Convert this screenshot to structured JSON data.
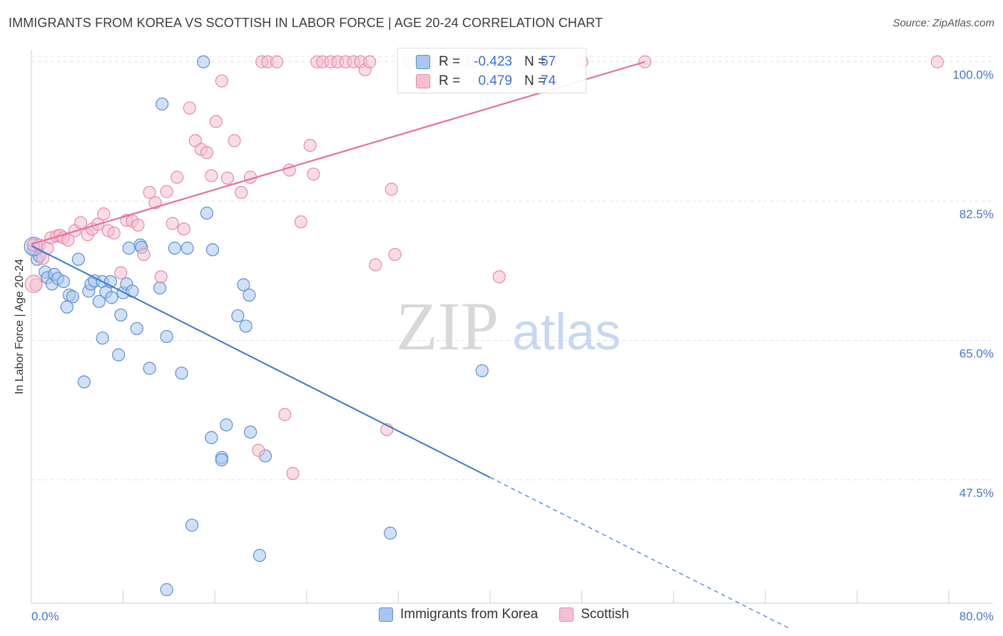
{
  "header": {
    "title": "IMMIGRANTS FROM KOREA VS SCOTTISH IN LABOR FORCE | AGE 20-24 CORRELATION CHART",
    "source": "Source: ZipAtlas.com"
  },
  "watermark": {
    "zip": "ZIP",
    "atlas": "atlas"
  },
  "colors": {
    "korea_fill": "#a9c6ef",
    "korea_stroke": "#5b8fd6",
    "korea_line": "#3a78d4",
    "scottish_fill": "#f6bfd0",
    "scottish_stroke": "#e58aa9",
    "scottish_line": "#e8709a",
    "tick_text": "#4a74c9"
  },
  "stats": {
    "rows": [
      {
        "series": "Immigrants from Korea",
        "r_label": "R =",
        "r_value": "-0.423",
        "n_label": "N =",
        "n_value": "57"
      },
      {
        "series": "Scottish",
        "r_label": "R =",
        "r_value": "0.479",
        "n_label": "N =",
        "n_value": "74"
      }
    ]
  },
  "legend": {
    "korea": "Immigrants from Korea",
    "scottish": "Scottish"
  },
  "chart_data": {
    "type": "scatter",
    "title": "IMMIGRANTS FROM KOREA VS SCOTTISH IN LABOR FORCE | AGE 20-24 CORRELATION CHART",
    "xlabel": "",
    "ylabel": "In Labor Force | Age 20-24",
    "xlim": [
      0,
      80
    ],
    "ylim": [
      32,
      101.5
    ],
    "x_tick_labels": [
      "0.0%",
      "80.0%"
    ],
    "y_ticks": [
      47.5,
      65.0,
      82.5,
      100.0
    ],
    "y_tick_labels": [
      "47.5%",
      "65.0%",
      "82.5%",
      "100.0%"
    ],
    "grid": true,
    "series": [
      {
        "name": "Immigrants from Korea",
        "trend": {
          "x": [
            0,
            40.0
          ],
          "y": [
            76.9,
            47.8
          ],
          "dashed_to": [
            66.0,
            28.9
          ]
        },
        "points": [
          [
            0.2,
            76.5
          ],
          [
            0.5,
            75.2
          ],
          [
            0.7,
            75.6
          ],
          [
            1.2,
            73.6
          ],
          [
            1.4,
            72.9
          ],
          [
            1.8,
            72.1
          ],
          [
            2.0,
            73.3
          ],
          [
            2.3,
            72.8
          ],
          [
            2.8,
            72.4
          ],
          [
            3.1,
            69.2
          ],
          [
            3.3,
            70.7
          ],
          [
            3.6,
            70.5
          ],
          [
            4.1,
            75.2
          ],
          [
            4.6,
            59.8
          ],
          [
            5.0,
            71.2
          ],
          [
            5.2,
            72.1
          ],
          [
            5.5,
            72.5
          ],
          [
            5.9,
            69.9
          ],
          [
            6.2,
            72.4
          ],
          [
            6.2,
            65.3
          ],
          [
            6.5,
            71.1
          ],
          [
            6.9,
            72.4
          ],
          [
            7.0,
            70.4
          ],
          [
            7.6,
            63.2
          ],
          [
            7.8,
            68.2
          ],
          [
            8.0,
            71.0
          ],
          [
            8.3,
            72.1
          ],
          [
            8.5,
            76.6
          ],
          [
            8.8,
            71.2
          ],
          [
            9.2,
            66.5
          ],
          [
            9.5,
            77.0
          ],
          [
            9.6,
            76.7
          ],
          [
            10.3,
            61.5
          ],
          [
            11.2,
            71.6
          ],
          [
            11.4,
            94.7
          ],
          [
            11.8,
            65.5
          ],
          [
            11.8,
            33.7
          ],
          [
            12.5,
            76.6
          ],
          [
            13.1,
            60.9
          ],
          [
            13.6,
            76.6
          ],
          [
            14.0,
            41.8
          ],
          [
            15.0,
            100.0
          ],
          [
            15.3,
            81.0
          ],
          [
            15.7,
            52.8
          ],
          [
            15.8,
            76.4
          ],
          [
            16.6,
            50.3
          ],
          [
            16.6,
            50.0
          ],
          [
            17.0,
            54.4
          ],
          [
            18.0,
            68.1
          ],
          [
            18.5,
            72.0
          ],
          [
            18.7,
            66.8
          ],
          [
            19.0,
            70.7
          ],
          [
            19.1,
            53.5
          ],
          [
            19.9,
            38.0
          ],
          [
            20.4,
            50.5
          ],
          [
            31.3,
            40.8
          ],
          [
            39.3,
            61.2
          ]
        ]
      },
      {
        "name": "Scottish",
        "trend": {
          "x": [
            0,
            53.5
          ],
          "y": [
            77.1,
            100.0
          ]
        },
        "points": [
          [
            0.2,
            77.0
          ],
          [
            0.4,
            72.0
          ],
          [
            0.7,
            77.0
          ],
          [
            1.0,
            75.3
          ],
          [
            1.4,
            76.6
          ],
          [
            1.7,
            77.9
          ],
          [
            2.2,
            78.1
          ],
          [
            2.5,
            78.2
          ],
          [
            2.8,
            77.9
          ],
          [
            3.2,
            77.6
          ],
          [
            3.8,
            78.8
          ],
          [
            4.3,
            79.8
          ],
          [
            4.9,
            78.3
          ],
          [
            5.3,
            79.0
          ],
          [
            5.8,
            79.6
          ],
          [
            6.3,
            80.9
          ],
          [
            6.7,
            78.8
          ],
          [
            7.2,
            78.5
          ],
          [
            7.8,
            73.5
          ],
          [
            8.3,
            80.1
          ],
          [
            8.8,
            80.0
          ],
          [
            9.3,
            79.5
          ],
          [
            9.8,
            75.8
          ],
          [
            10.3,
            83.6
          ],
          [
            10.8,
            82.3
          ],
          [
            11.3,
            73.0
          ],
          [
            11.8,
            83.7
          ],
          [
            12.3,
            79.7
          ],
          [
            12.7,
            85.5
          ],
          [
            13.3,
            79.0
          ],
          [
            13.8,
            94.2
          ],
          [
            14.3,
            90.1
          ],
          [
            14.8,
            89.0
          ],
          [
            15.3,
            88.6
          ],
          [
            15.7,
            85.7
          ],
          [
            16.1,
            92.5
          ],
          [
            16.6,
            97.6
          ],
          [
            17.1,
            85.4
          ],
          [
            17.7,
            90.1
          ],
          [
            18.3,
            83.6
          ],
          [
            19.1,
            85.5
          ],
          [
            19.8,
            51.2
          ],
          [
            20.1,
            100.0
          ],
          [
            20.6,
            100.0
          ],
          [
            21.4,
            100.0
          ],
          [
            22.1,
            55.7
          ],
          [
            22.5,
            86.4
          ],
          [
            22.8,
            48.3
          ],
          [
            23.5,
            79.9
          ],
          [
            24.3,
            89.5
          ],
          [
            24.6,
            85.9
          ],
          [
            24.9,
            100.0
          ],
          [
            25.4,
            100.0
          ],
          [
            26.1,
            100.0
          ],
          [
            26.7,
            100.0
          ],
          [
            27.4,
            100.0
          ],
          [
            28.1,
            100.0
          ],
          [
            28.7,
            100.0
          ],
          [
            29.1,
            99.0
          ],
          [
            29.5,
            100.0
          ],
          [
            30.0,
            74.5
          ],
          [
            31.0,
            53.8
          ],
          [
            31.4,
            84.0
          ],
          [
            31.7,
            75.8
          ],
          [
            33.0,
            100.0
          ],
          [
            34.5,
            100.0
          ],
          [
            35.5,
            100.0
          ],
          [
            37.0,
            100.0
          ],
          [
            38.0,
            100.0
          ],
          [
            38.5,
            100.0
          ],
          [
            40.8,
            73.0
          ],
          [
            48.0,
            100.0
          ],
          [
            53.5,
            100.0
          ],
          [
            79.0,
            100.0
          ]
        ]
      }
    ]
  }
}
